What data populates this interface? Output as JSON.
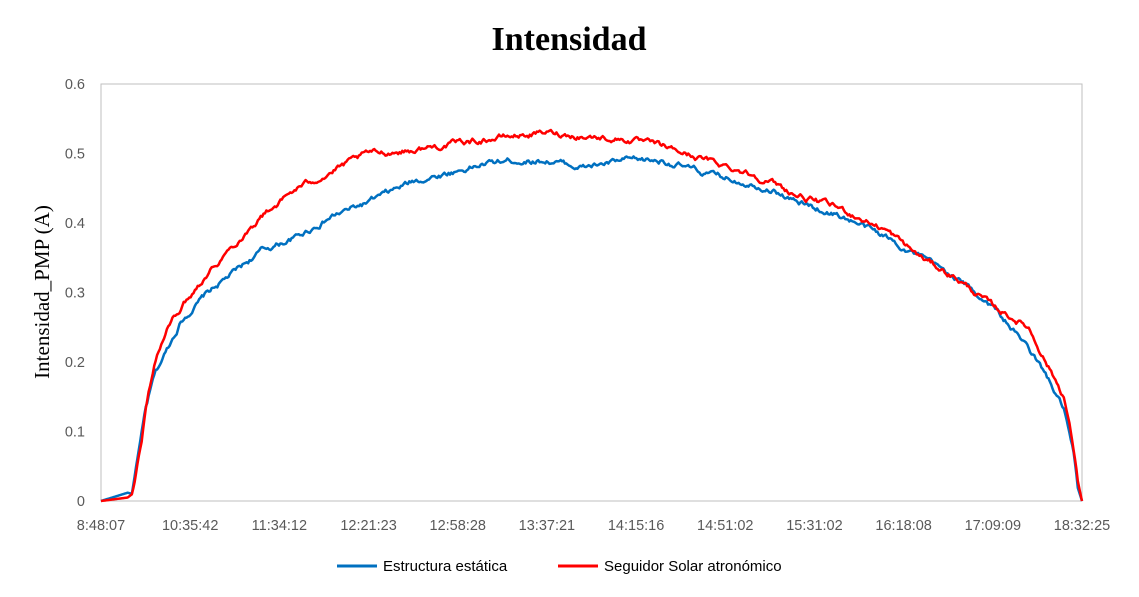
{
  "chart_data": {
    "type": "line",
    "title": "Intensidad",
    "xlabel": "",
    "ylabel": "Intensidad_PMP (A)",
    "ylim": [
      0,
      0.6
    ],
    "yticks": [
      "0",
      "0.1",
      "0.2",
      "0.3",
      "0.4",
      "0.5",
      "0.6"
    ],
    "xticks": [
      "8:48:07",
      "10:35:42",
      "11:34:12",
      "12:21:23",
      "12:58:28",
      "13:37:21",
      "14:15:16",
      "14:51:02",
      "15:31:02",
      "16:18:08",
      "17:09:09",
      "18:32:25"
    ],
    "grid": false,
    "legend_position": "bottom",
    "x_note": "x values are fractional positions along the category axis (0 = 8:48:07, 11 = 18:32:25)",
    "series": [
      {
        "name": "Estructura estática",
        "color": "#0070C0",
        "x": [
          0,
          0.3,
          0.35,
          0.38,
          0.45,
          0.5,
          0.6,
          0.75,
          0.9,
          1.2,
          1.5,
          1.8,
          2.2,
          2.6,
          3.0,
          3.5,
          4.0,
          4.3,
          4.6,
          5.0,
          5.4,
          5.9,
          6.3,
          6.8,
          7.2,
          7.5,
          7.8,
          8.3,
          8.8,
          9.2,
          9.6,
          10.0,
          10.4,
          10.6,
          10.8,
          10.9,
          10.95,
          11.0
        ],
        "values": [
          0,
          0.012,
          0.01,
          0.04,
          0.09,
          0.13,
          0.18,
          0.22,
          0.26,
          0.3,
          0.33,
          0.36,
          0.38,
          0.41,
          0.43,
          0.46,
          0.475,
          0.485,
          0.49,
          0.49,
          0.48,
          0.49,
          0.49,
          0.47,
          0.46,
          0.45,
          0.43,
          0.41,
          0.38,
          0.35,
          0.32,
          0.28,
          0.22,
          0.18,
          0.13,
          0.07,
          0.02,
          0
        ]
      },
      {
        "name": "Seguidor Solar atronómico",
        "color": "#FF0000",
        "x": [
          0,
          0.3,
          0.35,
          0.38,
          0.45,
          0.5,
          0.6,
          0.75,
          0.9,
          1.2,
          1.5,
          1.8,
          2.2,
          2.6,
          3.0,
          3.5,
          4.0,
          4.3,
          4.6,
          5.0,
          5.4,
          5.9,
          6.3,
          6.8,
          7.2,
          7.5,
          7.8,
          8.3,
          8.8,
          9.2,
          9.6,
          10.0,
          10.4,
          10.6,
          10.8,
          10.9,
          10.95,
          11.0
        ],
        "values": [
          0,
          0.005,
          0.01,
          0.03,
          0.08,
          0.13,
          0.2,
          0.25,
          0.28,
          0.33,
          0.37,
          0.41,
          0.45,
          0.475,
          0.5,
          0.505,
          0.515,
          0.52,
          0.525,
          0.53,
          0.525,
          0.52,
          0.51,
          0.49,
          0.475,
          0.46,
          0.44,
          0.42,
          0.39,
          0.35,
          0.32,
          0.28,
          0.25,
          0.2,
          0.15,
          0.08,
          0.03,
          0
        ]
      }
    ]
  }
}
